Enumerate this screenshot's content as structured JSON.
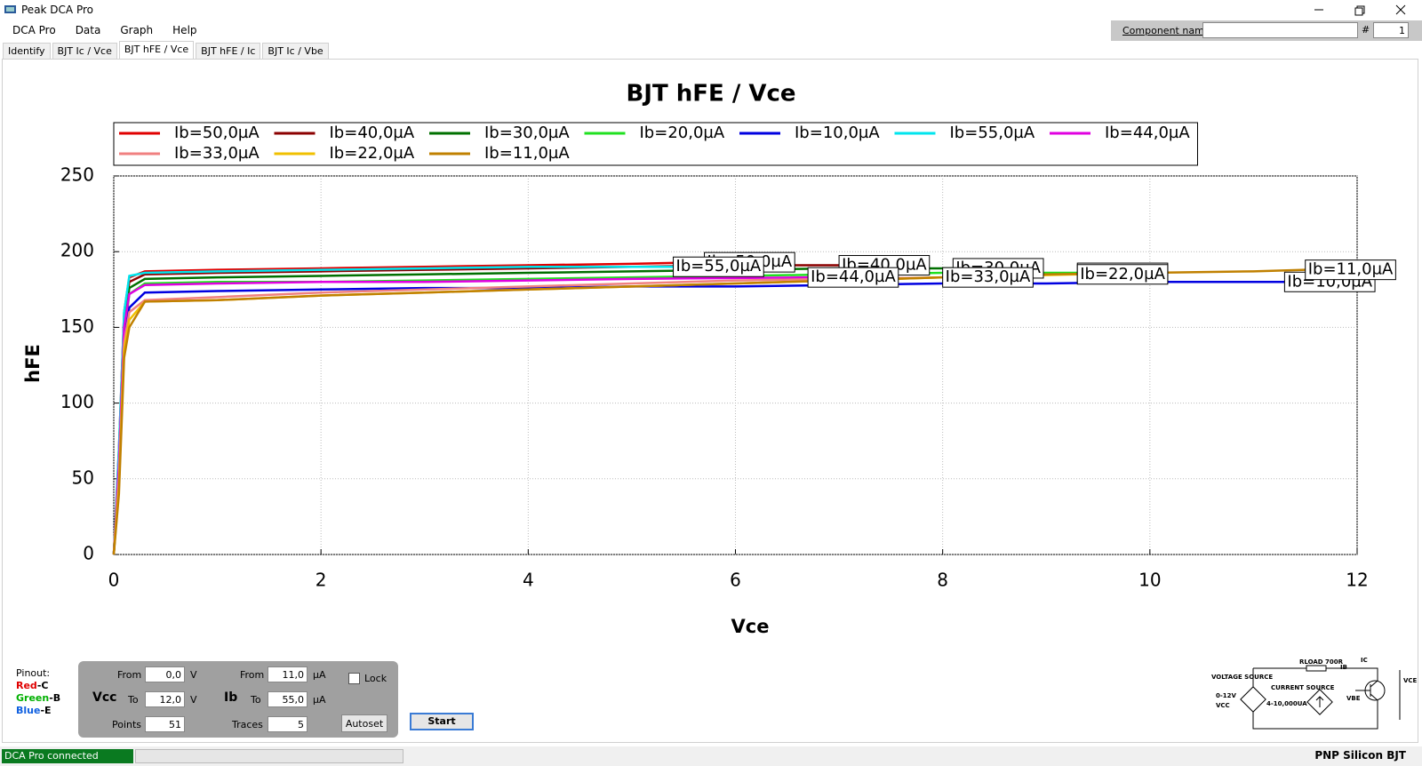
{
  "window": {
    "title": "Peak DCA Pro"
  },
  "menu": [
    "DCA Pro",
    "Data",
    "Graph",
    "Help"
  ],
  "tabs": [
    "Identify",
    "BJT Ic / Vce",
    "BJT hFE / Vce",
    "BJT hFE / Ic",
    "BJT Ic / Vbe"
  ],
  "active_tab": 2,
  "component": {
    "label": "Component name",
    "number_label": "#",
    "number": 1
  },
  "chart_data": {
    "type": "line",
    "title": "BJT hFE / Vce",
    "x_label": "Vce",
    "y_label": "hFE",
    "xlim": [
      0,
      12
    ],
    "xticks": [
      0,
      2,
      4,
      6,
      8,
      10,
      12
    ],
    "ylim": [
      0,
      250
    ],
    "yticks": [
      0,
      50,
      100,
      150,
      200,
      250
    ],
    "grid": true,
    "legend": "top",
    "series": [
      {
        "name": "Ib=50,0µA",
        "color": "#e00000",
        "x": [
          0,
          0.05,
          0.1,
          0.15,
          0.3,
          1,
          2,
          3,
          4,
          5,
          5.7
        ],
        "values": [
          0,
          70,
          160,
          183,
          187,
          188,
          189,
          190,
          191,
          192,
          193
        ]
      },
      {
        "name": "Ib=40,0µA",
        "color": "#8b0000",
        "x": [
          0,
          0.05,
          0.1,
          0.15,
          0.3,
          1,
          2,
          3,
          4,
          5,
          6,
          7
        ],
        "values": [
          0,
          65,
          155,
          180,
          185,
          186,
          187,
          188,
          189,
          190,
          191,
          191
        ]
      },
      {
        "name": "Ib=30,0µA",
        "color": "#007000",
        "x": [
          0,
          0.05,
          0.1,
          0.15,
          0.3,
          1,
          2,
          3,
          4,
          5,
          6,
          7,
          8.1
        ],
        "values": [
          0,
          60,
          150,
          176,
          182,
          183,
          184,
          185,
          186,
          187,
          188,
          189,
          189
        ]
      },
      {
        "name": "Ib=20,0µA",
        "color": "#20e020",
        "x": [
          0,
          0.05,
          0.1,
          0.15,
          0.3,
          1,
          2,
          3,
          4,
          5,
          6,
          7,
          8,
          9.3
        ],
        "values": [
          0,
          55,
          145,
          172,
          179,
          180,
          180,
          181,
          182,
          183,
          184,
          185,
          186,
          186
        ]
      },
      {
        "name": "Ib=10,0µA",
        "color": "#0000e0",
        "x": [
          0,
          0.05,
          0.1,
          0.15,
          0.3,
          1,
          2,
          3,
          4,
          5,
          6,
          7,
          8,
          9,
          10,
          11.3
        ],
        "values": [
          0,
          50,
          140,
          163,
          173,
          174,
          175,
          176,
          176,
          177,
          177,
          178,
          179,
          179,
          180,
          180
        ]
      },
      {
        "name": "Ib=55,0µA",
        "color": "#00e5ee",
        "x": [
          0,
          0.05,
          0.1,
          0.15,
          0.3,
          1,
          2,
          3,
          4,
          5.4
        ],
        "values": [
          0,
          70,
          160,
          184,
          186,
          187,
          188,
          189,
          190,
          190
        ]
      },
      {
        "name": "Ib=44,0µA",
        "color": "#e000e0",
        "x": [
          0,
          0.05,
          0.1,
          0.15,
          0.3,
          1,
          2,
          3,
          4,
          5,
          6.7
        ],
        "values": [
          0,
          60,
          150,
          172,
          178,
          179,
          180,
          180,
          181,
          182,
          183
        ]
      },
      {
        "name": "Ib=33,0µA",
        "color": "#f08080",
        "x": [
          0,
          0.05,
          0.1,
          0.15,
          0.3,
          1,
          2,
          3,
          4,
          5,
          6,
          7,
          8
        ],
        "values": [
          0,
          50,
          140,
          160,
          168,
          170,
          173,
          175,
          177,
          179,
          181,
          182,
          183
        ]
      },
      {
        "name": "Ib=22,0µA",
        "color": "#f0c000",
        "x": [
          0,
          0.05,
          0.1,
          0.15,
          0.3,
          1,
          2,
          3,
          4,
          5,
          6,
          7,
          8,
          9.3
        ],
        "values": [
          0,
          45,
          135,
          155,
          167,
          168,
          171,
          173,
          175,
          177,
          179,
          181,
          183,
          185
        ]
      },
      {
        "name": "Ib=11,0µA",
        "color": "#c08000",
        "x": [
          0,
          0.05,
          0.1,
          0.15,
          0.3,
          1,
          2,
          3,
          4,
          5,
          6,
          7,
          8,
          9,
          10,
          11,
          11.5
        ],
        "values": [
          0,
          40,
          130,
          150,
          167,
          168,
          171,
          173,
          175,
          177,
          179,
          181,
          183,
          185,
          186,
          187,
          188
        ]
      }
    ]
  },
  "controls": {
    "pinout": {
      "title": "Pinout:",
      "pins": [
        {
          "color_name": "Red",
          "pin": "-C",
          "color": "#e00000"
        },
        {
          "color_name": "Green",
          "pin": "-B",
          "color": "#00b000"
        },
        {
          "color_name": "Blue",
          "pin": "-E",
          "color": "#1060e0"
        }
      ]
    },
    "vcc": {
      "label": "Vcc",
      "from_label": "From",
      "from": "0,0",
      "unit": "V",
      "to_label": "To",
      "to": "12,0",
      "points_label": "Points",
      "points": 51
    },
    "ib": {
      "label": "Ib",
      "from_label": "From",
      "from": "11,0",
      "unit": "µA",
      "to_label": "To",
      "to": "55,0",
      "traces_label": "Traces",
      "traces": 5
    },
    "lock": "Lock",
    "autoset": "Autoset",
    "start": "Start"
  },
  "circuit": {
    "voltage_source": "VOLTAGE SOURCE",
    "voltage_range": "0-12V",
    "vcc": "VCC",
    "current_source": "CURRENT SOURCE",
    "current_range": "4-10,000UA",
    "rload": "RLOAD 700R",
    "ib": "IB",
    "ic": "IC",
    "vbe": "VBE",
    "vce": "VCE"
  },
  "status": {
    "connection": "DCA Pro connected",
    "device": "PNP Silicon BJT"
  }
}
